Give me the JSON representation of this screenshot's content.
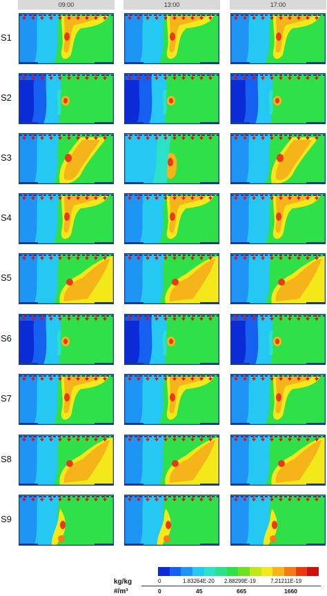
{
  "columns": [
    "09:00",
    "13:00",
    "17:00"
  ],
  "rows": [
    "S1",
    "S2",
    "S3",
    "S4",
    "S5",
    "S6",
    "S7",
    "S8",
    "S9"
  ],
  "legend": {
    "unit_top": "kg/kg",
    "unit_bottom": "#/m³",
    "ticks_top": [
      "0",
      "1.83264E-20",
      "2.88299E-19",
      "7.21211E-19"
    ],
    "ticks_bottom": [
      "0",
      "45",
      "665",
      "1660"
    ],
    "colors": [
      "#0a2bd6",
      "#1560f0",
      "#1e95f5",
      "#25c8f2",
      "#2de0c8",
      "#2ee08a",
      "#2fe048",
      "#6fe020",
      "#bfe81a",
      "#f2e81a",
      "#f5b41a",
      "#f57a18",
      "#e83a14",
      "#cc1010"
    ]
  },
  "colors": {
    "header_bg": "#d9d9d9",
    "arrow": "#e01010",
    "frame": "#1a3a8c"
  }
}
